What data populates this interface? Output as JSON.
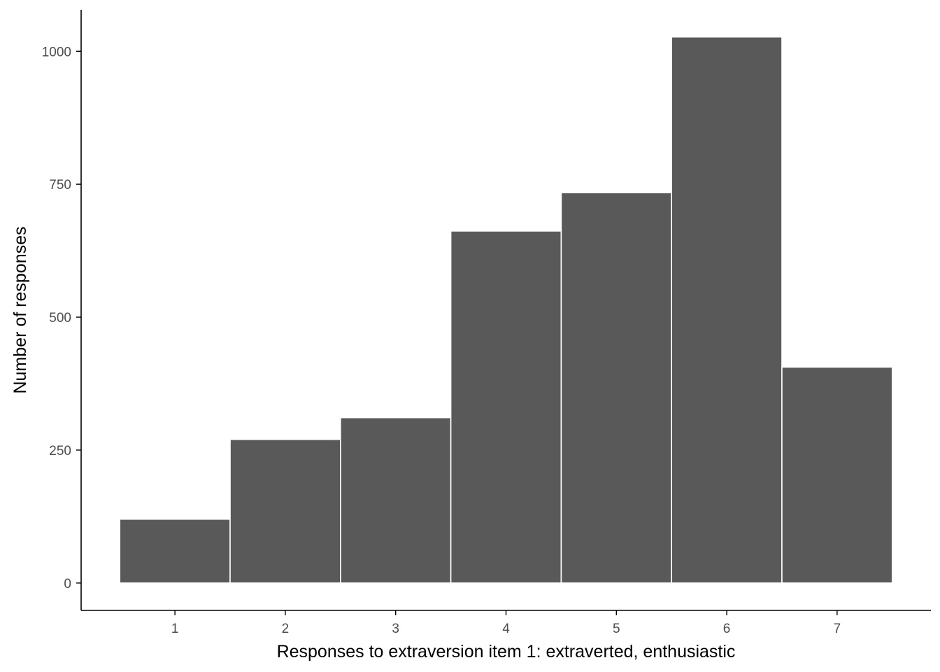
{
  "chart_data": {
    "type": "bar",
    "title": "",
    "xlabel": "Responses to extraversion item 1: extraverted, enthusiastic",
    "ylabel": "Number of responses",
    "categories": [
      "1",
      "2",
      "3",
      "4",
      "5",
      "6",
      "7"
    ],
    "values": [
      120,
      270,
      311,
      662,
      734,
      1027,
      406
    ],
    "xlim": [
      0.15,
      7.85
    ],
    "ylim": [
      -51.5,
      1078
    ],
    "yticks": [
      0,
      250,
      500,
      750,
      1000
    ],
    "yticklabels": [
      "0",
      "250",
      "500",
      "750",
      "1000"
    ],
    "grid": false,
    "legend": "none",
    "bar_color": "#595959",
    "bar_edge_color": "#ffffff"
  }
}
